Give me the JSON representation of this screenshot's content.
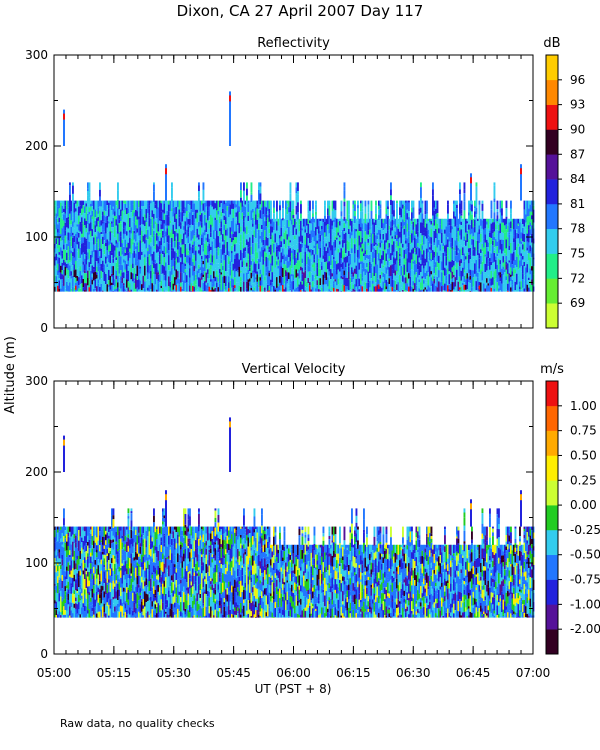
{
  "chart_data": [
    {
      "type": "heatmap",
      "title": "Reflectivity",
      "ylabel": "Altitude (m)",
      "ylim": [
        0,
        300
      ],
      "y_ticks": [
        "0",
        "100",
        "200",
        "300"
      ],
      "colorbar_unit": "dB",
      "colorbar_labels": [
        "69",
        "72",
        "75",
        "78",
        "81",
        "84",
        "87",
        "90",
        "93",
        "96"
      ],
      "colorbar_colors": [
        "#ccff33",
        "#66ee33",
        "#22ee88",
        "#33ccee",
        "#2277ff",
        "#2222dd",
        "#551199",
        "#330022",
        "#ee1111",
        "#ff8800",
        "#ffcc00"
      ],
      "data_region": {
        "base_m": 40,
        "top_m": 140,
        "top_late_m": 120,
        "spikes_m": [
          160,
          180,
          240,
          260
        ]
      }
    },
    {
      "type": "heatmap",
      "title": "Vertical Velocity",
      "ylabel": "Altitude (m)",
      "ylim": [
        0,
        300
      ],
      "y_ticks": [
        "0",
        "100",
        "200",
        "300"
      ],
      "colorbar_unit": "m/s",
      "colorbar_labels": [
        "-2.00",
        "-1.00",
        "-0.75",
        "-0.50",
        "-0.25",
        "0.00",
        "0.25",
        "0.50",
        "0.75",
        "1.00"
      ],
      "colorbar_colors": [
        "#330022",
        "#551199",
        "#2222dd",
        "#2277ff",
        "#33ccee",
        "#22cc22",
        "#ccff33",
        "#ffee00",
        "#ffaa00",
        "#ff6600",
        "#ee1111"
      ],
      "data_region": {
        "base_m": 40,
        "top_m": 140,
        "top_late_m": 120,
        "spikes_m": [
          160,
          180,
          240,
          260
        ]
      }
    }
  ],
  "figure": {
    "suptitle": "Dixon, CA 27 April 2007  Day 117",
    "ylabel": "Altitude (m)",
    "xlabel": "UT  (PST + 8)",
    "x_ticks": [
      "05:00",
      "05:15",
      "05:30",
      "05:45",
      "06:00",
      "06:15",
      "06:30",
      "06:45",
      "07:00"
    ],
    "footnote": "Raw data, no quality checks"
  }
}
